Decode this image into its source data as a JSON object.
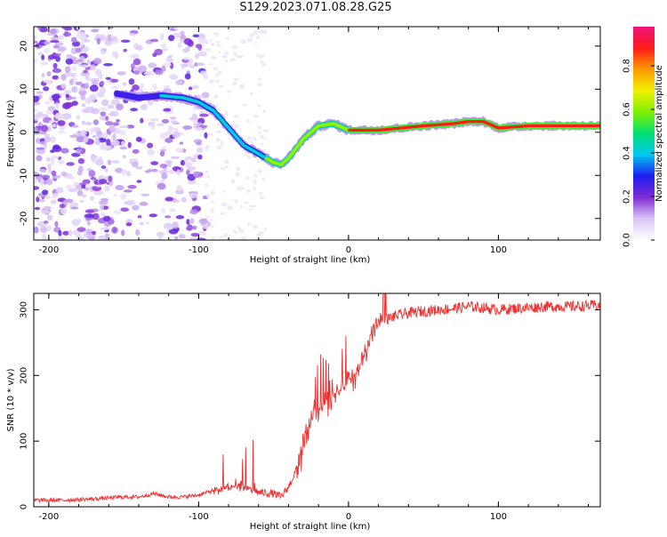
{
  "title": "S129.2023.071.08.28.G25",
  "chart_data": [
    {
      "type": "heatmap",
      "xlabel": "Height of straight line (km)",
      "ylabel": "Frequency (Hz)",
      "xlim": [
        -210,
        168
      ],
      "ylim": [
        -25,
        24.5
      ],
      "xticks": [
        -200,
        -100,
        0,
        100
      ],
      "yticks": [
        -20,
        -10,
        0,
        10,
        20
      ],
      "colorbar": {
        "label": "Normalized spectral amplitude",
        "range": [
          0,
          0.98
        ],
        "ticks": [
          0.0,
          0.2,
          0.4,
          0.6,
          0.8
        ],
        "colormap": [
          "#ffffff",
          "#d9c6f5",
          "#7f2bd6",
          "#1d1df0",
          "#00c8f0",
          "#00e070",
          "#80f000",
          "#f0f000",
          "#ff9900",
          "#ff1a1a",
          "#f0147a"
        ]
      },
      "ridge": {
        "x": [
          -155,
          -140,
          -125,
          -110,
          -100,
          -90,
          -80,
          -70,
          -60,
          -50,
          -45,
          -40,
          -30,
          -20,
          -10,
          0,
          20,
          50,
          70,
          80,
          90,
          100,
          120,
          168
        ],
        "y": [
          9,
          8,
          8.5,
          8,
          7,
          5,
          1,
          -3,
          -5,
          -7,
          -7.5,
          -6,
          -1.5,
          1.5,
          2,
          0.5,
          0.5,
          1.5,
          2,
          2.5,
          2.5,
          1,
          1.5,
          1.5
        ]
      },
      "scatter_region": {
        "xrange": [
          -210,
          -95
        ],
        "yrange": [
          -25,
          24.5
        ]
      }
    },
    {
      "type": "line",
      "xlabel": "Height of straight line (km)",
      "ylabel": "SNR (10 * v/v)",
      "xlim": [
        -210,
        168
      ],
      "ylim": [
        0,
        325
      ],
      "xticks": [
        -200,
        -100,
        0,
        100
      ],
      "yticks": [
        0,
        100,
        200,
        300
      ],
      "color": "#ee3030",
      "series": [
        {
          "x": [
            -210,
            -190,
            -170,
            -150,
            -140,
            -130,
            -120,
            -110,
            -100,
            -90,
            -80,
            -70,
            -60,
            -50,
            -45,
            -40,
            -35,
            -30,
            -25,
            -20,
            -15,
            -10,
            -5,
            0,
            5,
            10,
            15,
            20,
            25,
            30,
            40,
            50,
            60,
            70,
            80,
            90,
            100,
            110,
            120,
            130,
            140,
            150,
            168
          ],
          "y": [
            10,
            10,
            12,
            15,
            15,
            20,
            15,
            15,
            18,
            25,
            30,
            30,
            22,
            20,
            15,
            30,
            55,
            90,
            130,
            150,
            160,
            170,
            180,
            190,
            200,
            230,
            260,
            280,
            285,
            290,
            295,
            298,
            300,
            302,
            305,
            303,
            300,
            302,
            303,
            305,
            305,
            305,
            307
          ]
        }
      ]
    }
  ]
}
